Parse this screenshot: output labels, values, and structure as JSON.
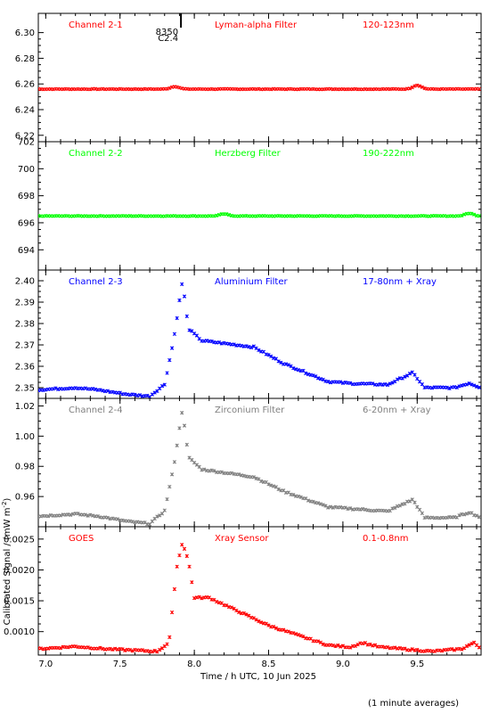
{
  "chart_data": [
    {
      "type": "scatter",
      "channel_label": "Channel 2-1",
      "filter_label": "Lyman-alpha Filter",
      "band_label": "120-123nm",
      "color": "#ff0000",
      "ylim": [
        6.215,
        6.315
      ],
      "yticks": [
        "6.22",
        "6.24",
        "6.26",
        "6.28",
        "6.30"
      ],
      "ytick_values": [
        6.22,
        6.24,
        6.26,
        6.28,
        6.3
      ],
      "annotation": {
        "x": 7.91,
        "lines": [
          "8350",
          "C2.4"
        ]
      },
      "profile": {
        "type": "flat",
        "base": 6.256,
        "bumps": [
          [
            7.87,
            0.002
          ],
          [
            9.5,
            0.003
          ]
        ]
      }
    },
    {
      "type": "scatter",
      "channel_label": "Channel 2-2",
      "filter_label": "Herzberg Filter",
      "band_label": "190-222nm",
      "color": "#00ff00",
      "ylim": [
        692.5,
        702
      ],
      "yticks": [
        "694",
        "696",
        "698",
        "700",
        "702"
      ],
      "ytick_values": [
        694,
        696,
        698,
        700,
        702
      ],
      "profile": {
        "type": "flat",
        "base": 696.5,
        "bumps": [
          [
            8.2,
            0.15
          ],
          [
            9.85,
            0.2
          ]
        ]
      }
    },
    {
      "type": "scatter",
      "channel_label": "Channel 2-3",
      "filter_label": "Aluminium Filter",
      "band_label": "17-80nm + Xray",
      "color": "#0000ff",
      "ylim": [
        2.345,
        2.405
      ],
      "yticks": [
        "2.35",
        "2.36",
        "2.37",
        "2.38",
        "2.39",
        "2.40"
      ],
      "ytick_values": [
        2.35,
        2.36,
        2.37,
        2.38,
        2.39,
        2.4
      ],
      "profile": {
        "type": "flare",
        "pre": 2.349,
        "dip": 2.346,
        "peak": 2.4,
        "shoulder": 2.372,
        "mid": 2.369,
        "late": 2.352,
        "bump": 2.357,
        "end": 2.35
      }
    },
    {
      "type": "scatter",
      "channel_label": "Channel 2-4",
      "filter_label": "Zirconium Filter",
      "band_label": "6-20nm + Xray",
      "color": "#808080",
      "ylim": [
        0.94,
        1.025
      ],
      "yticks": [
        "0.96",
        "0.98",
        "1.00",
        "1.02"
      ],
      "ytick_values": [
        0.96,
        0.98,
        1.0,
        1.02
      ],
      "profile": {
        "type": "flare",
        "pre": 0.947,
        "dip": 0.942,
        "peak": 1.018,
        "shoulder": 0.978,
        "mid": 0.973,
        "late": 0.952,
        "bump": 0.958,
        "end": 0.946
      }
    },
    {
      "type": "scatter",
      "channel_label": "GOES",
      "filter_label": "Xray Sensor",
      "band_label": "0.1-0.8nm",
      "color": "#ff0000",
      "ylim": [
        0.00062,
        0.0027
      ],
      "yticks": [
        "0.0010",
        "0.0015",
        "0.0020",
        "0.0025"
      ],
      "ytick_values": [
        0.001,
        0.0015,
        0.002,
        0.0025
      ],
      "profile": {
        "type": "goes",
        "pre": 0.00072,
        "peak": 0.00245,
        "shoulder": 0.00155,
        "late": 0.00075,
        "bump": 0.00082,
        "end": 0.00072
      }
    }
  ],
  "x_axis": {
    "xlim": [
      6.95,
      9.93
    ],
    "xticks": [
      "7.0",
      "7.5",
      "8.0",
      "8.5",
      "9.0",
      "9.5"
    ],
    "xtick_values": [
      7.0,
      7.5,
      8.0,
      8.5,
      9.0,
      9.5
    ],
    "xlabel": "Time / h UTC, 10 Jun 2025"
  },
  "ylabel": "Calibrated Signal / (mW m",
  "ylabel_sup": "-2",
  "ylabel_close": ")",
  "footnote": "(1 minute averages)"
}
